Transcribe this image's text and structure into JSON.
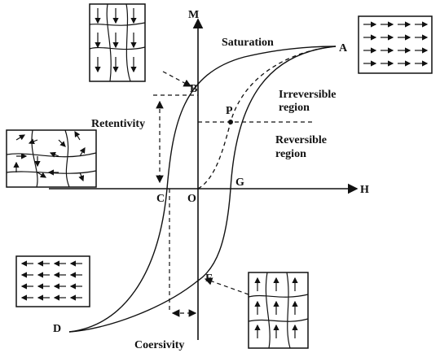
{
  "axes": {
    "vertical": "M",
    "horizontal": "H"
  },
  "points": {
    "A": "A",
    "B": "B",
    "P": "P",
    "C": "C",
    "O": "O",
    "G": "G",
    "D": "D",
    "F": "F"
  },
  "labels": {
    "saturation": "Saturation",
    "irreversible": [
      "Irreversible",
      "region"
    ],
    "reversible": [
      "Reversible",
      "region"
    ],
    "retentivity": "Retentivity",
    "coersivity": "Coersivity"
  }
}
